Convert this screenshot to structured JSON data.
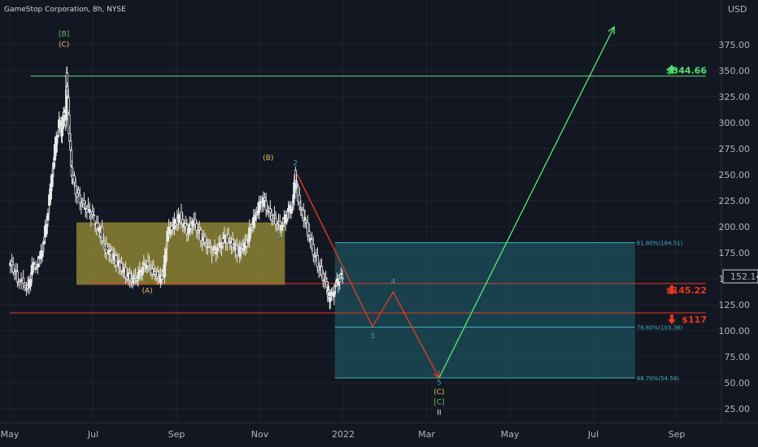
{
  "header": {
    "title": "GameStop Corporation, 8h, NYSE"
  },
  "currency": "USD",
  "colors": {
    "background": "#131722",
    "grid": "#1e222d",
    "candle": "#e8e8e8",
    "box": "#8c8232",
    "fib_zone": "#1a4652",
    "fib_line": "#3bb3c3",
    "green": "#4be36a",
    "red": "#e8381e",
    "wave_primary": "#e3c25a",
    "wave_minor": "#2ba0b8",
    "wave_green": "#6cbf5b"
  },
  "chart_data": {
    "type": "candlestick",
    "x_axis_labels": [
      {
        "label": "May",
        "t": 0
      },
      {
        "label": "Jul",
        "t": 2
      },
      {
        "label": "Sep",
        "t": 4
      },
      {
        "label": "Nov",
        "t": 6
      },
      {
        "label": "2022",
        "t": 8
      },
      {
        "label": "Mar",
        "t": 10
      },
      {
        "label": "May",
        "t": 12
      },
      {
        "label": "Jul",
        "t": 14
      },
      {
        "label": "Sep",
        "t": 16
      }
    ],
    "y_axis_ticks": [
      "25.00",
      "50.00",
      "75.00",
      "100.00",
      "125.00",
      "150.00",
      "175.00",
      "200.00",
      "225.00",
      "250.00",
      "275.00",
      "300.00",
      "325.00",
      "350.00",
      "375.00"
    ],
    "ylim": [
      10,
      410
    ],
    "current_price": "152.14",
    "price_series": [
      [
        0.0,
        165
      ],
      [
        0.1,
        160
      ],
      [
        0.2,
        150
      ],
      [
        0.35,
        145
      ],
      [
        0.45,
        140
      ],
      [
        0.55,
        160
      ],
      [
        0.7,
        165
      ],
      [
        0.8,
        180
      ],
      [
        0.9,
        205
      ],
      [
        1.0,
        240
      ],
      [
        1.1,
        275
      ],
      [
        1.2,
        300
      ],
      [
        1.25,
        290
      ],
      [
        1.3,
        310
      ],
      [
        1.35,
        300
      ],
      [
        1.37,
        344
      ],
      [
        1.4,
        320
      ],
      [
        1.45,
        280
      ],
      [
        1.5,
        250
      ],
      [
        1.6,
        235
      ],
      [
        1.7,
        225
      ],
      [
        1.8,
        220
      ],
      [
        1.9,
        215
      ],
      [
        2.0,
        210
      ],
      [
        2.1,
        200
      ],
      [
        2.2,
        195
      ],
      [
        2.3,
        180
      ],
      [
        2.4,
        175
      ],
      [
        2.5,
        170
      ],
      [
        2.6,
        165
      ],
      [
        2.7,
        160
      ],
      [
        2.8,
        155
      ],
      [
        2.9,
        150
      ],
      [
        3.0,
        150
      ],
      [
        3.1,
        152
      ],
      [
        3.2,
        160
      ],
      [
        3.3,
        165
      ],
      [
        3.4,
        160
      ],
      [
        3.5,
        155
      ],
      [
        3.6,
        150
      ],
      [
        3.7,
        155
      ],
      [
        3.8,
        195
      ],
      [
        3.9,
        200
      ],
      [
        4.0,
        205
      ],
      [
        4.1,
        210
      ],
      [
        4.2,
        200
      ],
      [
        4.3,
        195
      ],
      [
        4.4,
        205
      ],
      [
        4.5,
        200
      ],
      [
        4.6,
        190
      ],
      [
        4.7,
        185
      ],
      [
        4.8,
        180
      ],
      [
        4.9,
        175
      ],
      [
        5.0,
        180
      ],
      [
        5.1,
        185
      ],
      [
        5.2,
        190
      ],
      [
        5.3,
        185
      ],
      [
        5.4,
        180
      ],
      [
        5.5,
        175
      ],
      [
        5.6,
        180
      ],
      [
        5.7,
        185
      ],
      [
        5.8,
        200
      ],
      [
        5.9,
        210
      ],
      [
        6.0,
        220
      ],
      [
        6.1,
        225
      ],
      [
        6.2,
        215
      ],
      [
        6.3,
        210
      ],
      [
        6.4,
        205
      ],
      [
        6.5,
        200
      ],
      [
        6.6,
        205
      ],
      [
        6.7,
        215
      ],
      [
        6.8,
        220
      ],
      [
        6.85,
        250
      ],
      [
        6.9,
        235
      ],
      [
        7.0,
        215
      ],
      [
        7.1,
        205
      ],
      [
        7.2,
        190
      ],
      [
        7.3,
        175
      ],
      [
        7.4,
        165
      ],
      [
        7.5,
        155
      ],
      [
        7.6,
        145
      ],
      [
        7.65,
        135
      ],
      [
        7.7,
        130
      ],
      [
        7.8,
        140
      ],
      [
        7.9,
        150
      ],
      [
        8.0,
        152
      ]
    ],
    "consolidation_box": {
      "x0": 1.6,
      "x1": 6.6,
      "y0": 144,
      "y1": 204
    },
    "fib_zone": {
      "x0": 7.8,
      "x1": 15.0,
      "y0": 54.58,
      "y1": 184.51
    },
    "fib_levels": [
      {
        "label": "61.80%(184.51)",
        "price": 184.51
      },
      {
        "label": "78.60%(103.36)",
        "price": 103.36
      },
      {
        "label": "88.70%(54.58)",
        "price": 54.58
      }
    ],
    "horizontal_lines": [
      {
        "name": "resistance",
        "price": 344.66,
        "x0": 0.5,
        "x1": 16.7,
        "color": "green",
        "label": "$344.66",
        "arrow": "up"
      },
      {
        "name": "support-145",
        "price": 145.22,
        "x0": 1.9,
        "x1": 16.7,
        "color": "red",
        "label": "$145.22",
        "arrow": "down"
      },
      {
        "name": "support-117",
        "price": 117,
        "x0": 0.0,
        "x1": 16.7,
        "color": "red",
        "label": "$117",
        "arrow": "down"
      }
    ],
    "projection_red": [
      [
        6.9,
        250
      ],
      [
        8.7,
        104
      ],
      [
        9.2,
        137
      ],
      [
        10.3,
        54.58
      ]
    ],
    "projection_green": [
      [
        10.3,
        54.58
      ],
      [
        14.5,
        392
      ]
    ],
    "wave_labels": [
      {
        "text": "[B]",
        "t": 1.3,
        "price": 383,
        "color": "wave_green"
      },
      {
        "text": "(C)",
        "t": 1.3,
        "price": 373,
        "color": "wave_primary"
      },
      {
        "text": "(B)",
        "t": 6.2,
        "price": 264,
        "color": "wave_primary"
      },
      {
        "text": "2",
        "t": 6.85,
        "price": 259,
        "color": "wave_minor"
      },
      {
        "text": "1",
        "t": 6.45,
        "price": 189,
        "color": "wave_minor"
      },
      {
        "text": "(A)",
        "t": 3.3,
        "price": 136,
        "color": "wave_primary"
      },
      {
        "text": "3",
        "t": 8.7,
        "price": 93,
        "color": "wave_minor"
      },
      {
        "text": "4",
        "t": 9.2,
        "price": 145,
        "color": "wave_minor"
      },
      {
        "text": "5",
        "t": 10.3,
        "price": 48,
        "color": "wave_minor"
      },
      {
        "text": "(C)",
        "t": 10.3,
        "price": 39,
        "color": "wave_primary"
      },
      {
        "text": "[C]",
        "t": 10.3,
        "price": 29,
        "color": "wave_green"
      },
      {
        "text": "II",
        "t": 10.3,
        "price": 19,
        "color": "candle"
      }
    ]
  }
}
